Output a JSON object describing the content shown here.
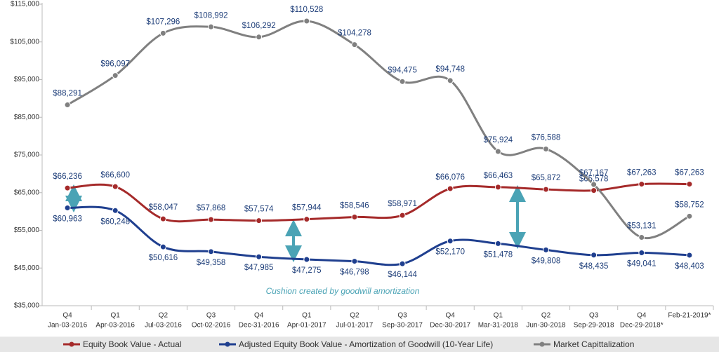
{
  "chart_data": {
    "type": "line",
    "categories": [
      "Jan-03-2016",
      "Apr-03-2016",
      "Jul-03-2016",
      "Oct-02-2016",
      "Dec-31-2016",
      "Apr-01-2017",
      "Jul-01-2017",
      "Sep-30-2017",
      "Dec-30-2017",
      "Mar-31-2018",
      "Jun-30-2018",
      "Sep-29-2018",
      "Dec-29-2018*",
      "Feb-21-2019*"
    ],
    "quarters": [
      "Q4",
      "Q1",
      "Q2",
      "Q3",
      "Q4",
      "Q1",
      "Q2",
      "Q3",
      "Q4",
      "Q1",
      "Q2",
      "Q3",
      "Q4",
      null
    ],
    "ylim": [
      35000,
      115000
    ],
    "yticks": [
      {
        "value": 35000,
        "label": "$35,000"
      },
      {
        "value": 45000,
        "label": "$45,000"
      },
      {
        "value": 55000,
        "label": "$55,000"
      },
      {
        "value": 65000,
        "label": "$65,000"
      },
      {
        "value": 75000,
        "label": "$75,000"
      },
      {
        "value": 85000,
        "label": "$85,000"
      },
      {
        "value": 95000,
        "label": "$95,000"
      },
      {
        "value": 105000,
        "label": "$105,000"
      },
      {
        "value": 115000,
        "label": "$115,000"
      }
    ],
    "annotation": "Cushion created by goodwill amortization",
    "series": [
      {
        "name": "Equity Book Value - Actual",
        "color": "#a52a2a",
        "values": [
          66236,
          66600,
          58047,
          57868,
          57574,
          57944,
          58546,
          58971,
          66076,
          66463,
          65872,
          65578,
          67263,
          67263
        ],
        "value_labels": [
          "$66,236",
          "$66,600",
          "$58,047",
          "$57,868",
          "$57,574",
          "$57,944",
          "$58,546",
          "$58,971",
          "$66,076",
          "$66,463",
          "$65,872",
          "$65,578",
          "$67,263",
          "$67,263"
        ]
      },
      {
        "name": "Adjusted Equity Book Value - Amortization of Goodwill (10-Year Life)",
        "color": "#1f3f8f",
        "values": [
          60963,
          60248,
          50616,
          49358,
          47985,
          47275,
          46798,
          46144,
          52170,
          51478,
          49808,
          48435,
          49041,
          48403
        ],
        "value_labels": [
          "$60,963",
          "$60,248",
          "$50,616",
          "$49,358",
          "$47,985",
          "$47,275",
          "$46,798",
          "$46,144",
          "$52,170",
          "$51,478",
          "$49,808",
          "$48,435",
          "$49,041",
          "$48,403"
        ]
      },
      {
        "name": "Market Capittalization",
        "color": "#808080",
        "values": [
          88291,
          96097,
          107296,
          108992,
          106292,
          110528,
          104278,
          94475,
          94748,
          75924,
          76588,
          67167,
          53131,
          58752
        ],
        "value_labels": [
          "$88,291",
          "$96,097",
          "$107,296",
          "$108,992",
          "$106,292",
          "$110,528",
          "$104,278",
          "$94,475",
          "$94,748",
          "$75,924",
          "$76,588",
          "$67,167",
          "$53,131",
          "$58,752"
        ]
      }
    ]
  }
}
